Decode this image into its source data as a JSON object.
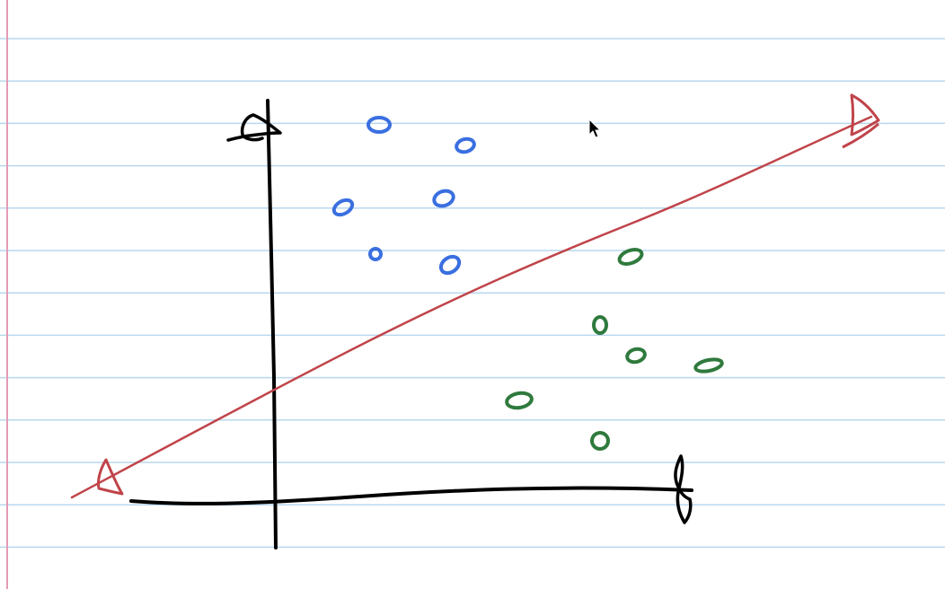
{
  "notebook": {
    "paper_color": "#ffffff",
    "rule_color": "#b9d7ee",
    "margin_color": "#e59ab5",
    "line_count": 13
  },
  "drawing": {
    "ink_color": "#000000",
    "line_color": "#c0444a",
    "blue_color": "#3a6fe0",
    "green_color": "#2f7a3d",
    "blue_points": 6,
    "green_points": 6
  },
  "cursor": {
    "icon": "mouse-pointer-icon"
  }
}
